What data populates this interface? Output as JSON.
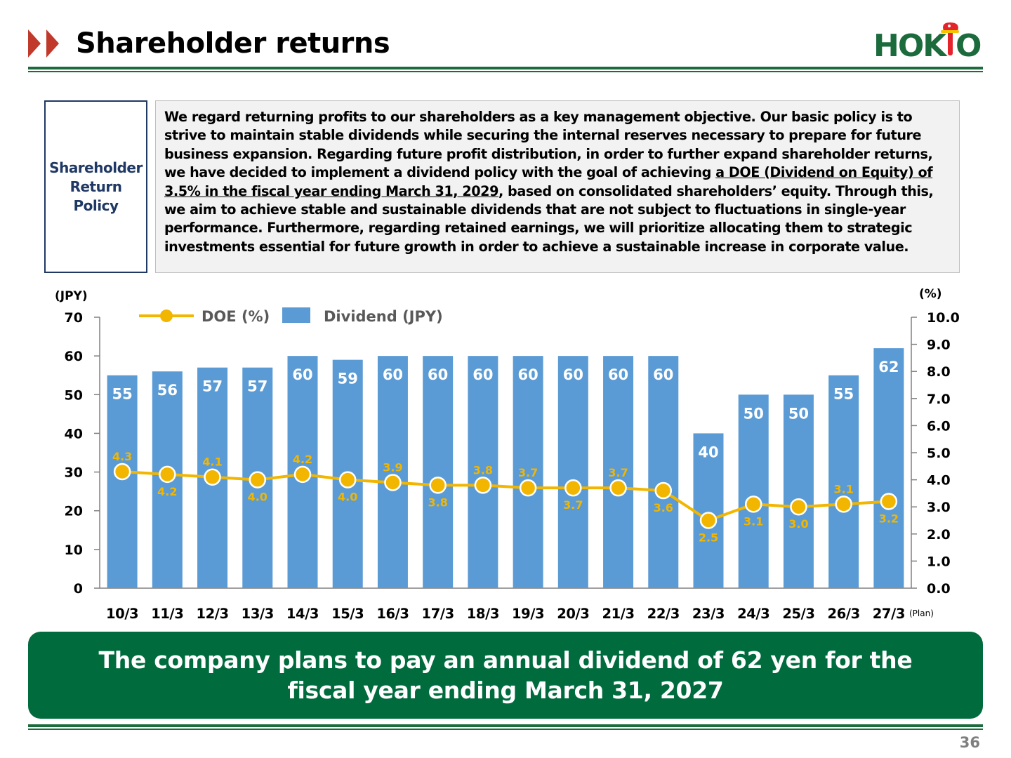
{
  "header": {
    "title": "Shareholder returns",
    "logo_text": "HOKTO",
    "accent_color": "#c0392b",
    "brand_green": "#1c6b3d"
  },
  "policy": {
    "label": "Shareholder\nReturn\nPolicy",
    "text_before": "We regard returning profits to our shareholders as a key management objective. Our basic policy is to strive to maintain stable dividends while securing the internal reserves necessary to prepare for future business expansion. Regarding future profit distribution, in order to further expand shareholder returns, we have decided to implement a dividend policy with the goal of achieving ",
    "text_emphasis": "a DOE (Dividend on Equity) of 3.5% in the fiscal year ending March 31, 2029",
    "text_after": ", based on consolidated shareholders’ equity. Through this, we aim to achieve stable and sustainable dividends that are not subject to fluctuations in single-year performance. Furthermore, regarding retained earnings, we will prioritize allocating them to strategic investments essential for future growth in order to achieve a sustainable increase in corporate value."
  },
  "chart_data": {
    "type": "bar",
    "categories": [
      "10/3",
      "11/3",
      "12/3",
      "13/3",
      "14/3",
      "15/3",
      "16/3",
      "17/3",
      "18/3",
      "19/3",
      "20/3",
      "21/3",
      "22/3",
      "23/3",
      "24/3",
      "25/3",
      "26/3",
      "27/3"
    ],
    "category_note": "(Plan)",
    "series": [
      {
        "name": "Dividend (JPY)",
        "type": "bar",
        "axis": "left",
        "color": "#5b9bd5",
        "values": [
          55,
          56,
          57,
          57,
          60,
          59,
          60,
          60,
          60,
          60,
          60,
          60,
          60,
          40,
          50,
          50,
          55,
          62
        ]
      },
      {
        "name": "DOE (%)",
        "type": "line",
        "axis": "right",
        "color": "#f2b600",
        "values": [
          4.3,
          4.2,
          4.1,
          4.0,
          4.2,
          4.0,
          3.9,
          3.8,
          3.8,
          3.7,
          3.7,
          3.7,
          3.6,
          2.5,
          3.1,
          3.0,
          3.1,
          3.2
        ],
        "label_positions": [
          "above",
          "below",
          "above",
          "below",
          "above",
          "below",
          "above",
          "below",
          "above",
          "above",
          "below",
          "above",
          "below",
          "below",
          "below",
          "below",
          "above",
          "below"
        ]
      }
    ],
    "y_left": {
      "label": "(JPY)",
      "min": 0,
      "max": 70,
      "step": 10
    },
    "y_right": {
      "label": "(%)",
      "min": 0,
      "max": 10,
      "step": 1,
      "decimals": 1
    },
    "legend_placement": "top-left",
    "grid": false
  },
  "banner": {
    "text": "The company plans to pay an annual dividend of 62 yen for the fiscal year ending March 31, 2027"
  },
  "footer": {
    "page_number": "36"
  }
}
